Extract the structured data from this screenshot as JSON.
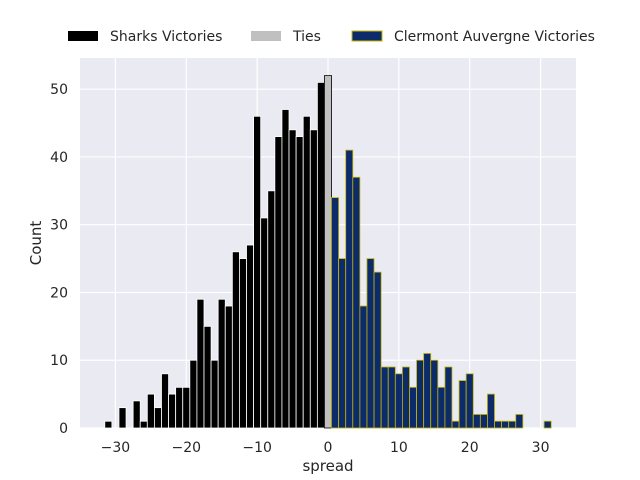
{
  "chart_data": {
    "type": "bar",
    "xlabel": "spread",
    "ylabel": "Count",
    "xlim": [
      -35,
      35
    ],
    "ylim": [
      0,
      54.6
    ],
    "x_ticks": [
      -30,
      -20,
      -10,
      0,
      10,
      20,
      30
    ],
    "x_tick_labels": [
      "−30",
      "−20",
      "−10",
      "0",
      "10",
      "20",
      "30"
    ],
    "y_ticks": [
      0,
      10,
      20,
      30,
      40,
      50
    ],
    "y_tick_labels": [
      "0",
      "10",
      "20",
      "30",
      "40",
      "50"
    ],
    "grid": true,
    "legend_position": "top",
    "series": [
      {
        "name": "Sharks Victories",
        "color": "#000000",
        "edge_color": "#ffffff",
        "x": [
          -31,
          -29,
          -27,
          -26,
          -25,
          -24,
          -23,
          -22,
          -21,
          -20,
          -19,
          -18,
          -17,
          -16,
          -15,
          -14,
          -13,
          -12,
          -11,
          -10,
          -9,
          -8,
          -7,
          -6,
          -5,
          -4,
          -3,
          -2,
          -1
        ],
        "values": [
          1,
          3,
          4,
          1,
          5,
          3,
          8,
          5,
          6,
          6,
          10,
          19,
          15,
          10,
          19,
          18,
          26,
          25,
          27,
          46,
          31,
          35,
          43,
          47,
          44,
          43,
          46,
          44,
          51
        ]
      },
      {
        "name": "Ties",
        "color": "#c0c0c0",
        "edge_color": "#000000",
        "x": [
          0
        ],
        "values": [
          52
        ]
      },
      {
        "name": "Clermont Auvergne Victories",
        "color": "#0b2b6b",
        "edge_color": "#c8b400",
        "x": [
          1,
          2,
          3,
          4,
          5,
          6,
          7,
          8,
          9,
          10,
          11,
          12,
          13,
          14,
          15,
          16,
          17,
          18,
          19,
          20,
          21,
          22,
          23,
          24,
          25,
          26,
          27,
          31
        ],
        "values": [
          34,
          25,
          41,
          37,
          18,
          25,
          23,
          9,
          9,
          8,
          9,
          6,
          10,
          11,
          10,
          6,
          9,
          1,
          7,
          8,
          2,
          2,
          5,
          1,
          1,
          1,
          2,
          1
        ]
      }
    ]
  }
}
